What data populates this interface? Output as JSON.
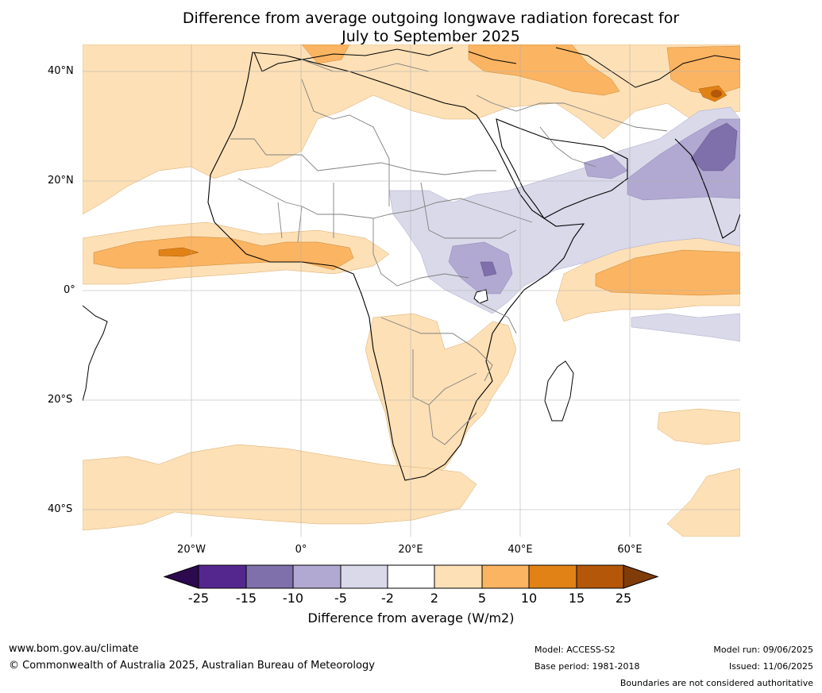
{
  "title_line1": "Difference from average outgoing longwave radiation forecast for",
  "title_line2": "July to September 2025",
  "lat_labels": [
    "40°N",
    "20°N",
    "0°",
    "20°S",
    "40°S"
  ],
  "lon_labels": [
    "20°W",
    "0°",
    "20°E",
    "40°E",
    "60°E"
  ],
  "colorbar": {
    "ticks": [
      "-25",
      "-15",
      "-10",
      "-5",
      "-2",
      "2",
      "5",
      "10",
      "15",
      "25"
    ],
    "label": "Difference from average (W/m2)",
    "colors": {
      "below_min": "#2d0a4e",
      "n25_15": "#54278f",
      "n15_10": "#7f6faa",
      "n10_5": "#b1a9d1",
      "n5_2": "#d9d9ea",
      "n2_2": "#ffffff",
      "p2_5": "#fde0b6",
      "p5_10": "#fbb462",
      "p10_15": "#e08216",
      "p15_25": "#b45708",
      "above_max": "#7f3b08"
    }
  },
  "footer": {
    "website": "www.bom.gov.au/climate",
    "copyright": "© Commonwealth of Australia 2025, Australian Bureau of Meteorology",
    "model": "Model: ACCESS-S2",
    "base_period": "Base period: 1981-2018",
    "model_run": "Model run: 09/06/2025",
    "issued": "Issued: 11/06/2025",
    "disclaimer": "Boundaries are not considered authoritative"
  }
}
